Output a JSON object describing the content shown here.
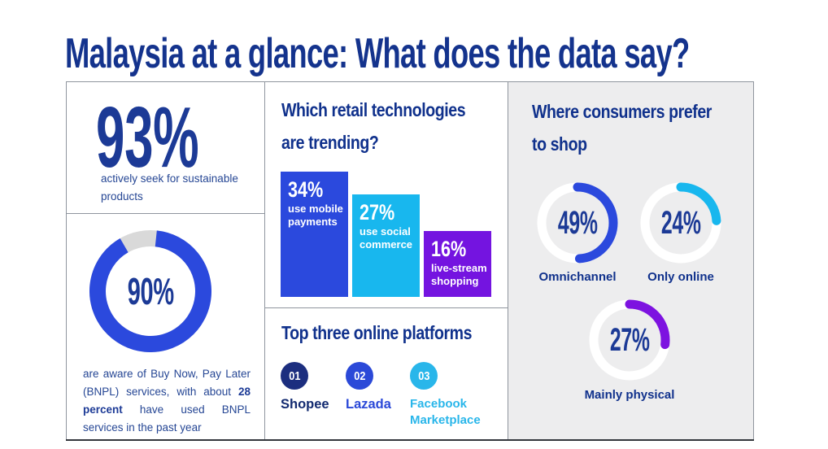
{
  "title": "Malaysia at a glance: What does the data say?",
  "accent_colors": {
    "navy": "#16348f",
    "royal_blue": "#2b49dd",
    "cyan": "#18b7ee",
    "purple": "#7414e0",
    "track_gray": "#d9d9d9",
    "panel_gray": "#ededee"
  },
  "sustainable_panel": {
    "value_label": "93%",
    "caption": "actively seek for sustainable products"
  },
  "bnpl_panel": {
    "value_label": "90%",
    "caption_pre": "are aware of Buy Now, Pay Later (BNPL) services, with about ",
    "caption_bold": "28 percent",
    "caption_post": " have used BNPL services in the past year"
  },
  "retail_panel": {
    "heading_line1": "Which retail technologies",
    "heading_line2": "are trending?",
    "bars": [
      {
        "value_label": "34%",
        "caption": "use mobile payments"
      },
      {
        "value_label": "27%",
        "caption": "use social commerce"
      },
      {
        "value_label": "16%",
        "caption": "live-stream shopping"
      }
    ]
  },
  "platforms_panel": {
    "heading": "Top three online platforms",
    "items": [
      {
        "rank": "01",
        "name": "Shopee"
      },
      {
        "rank": "02",
        "name": "Lazada"
      },
      {
        "rank": "03",
        "name": "Facebook Marketplace"
      }
    ]
  },
  "shop_panel": {
    "heading_line1": "Where consumers prefer",
    "heading_line2": "to shop",
    "rings": [
      {
        "value_label": "49%",
        "label": "Omnichannel"
      },
      {
        "value_label": "24%",
        "label": "Only online"
      },
      {
        "value_label": "27%",
        "label": "Mainly physical"
      }
    ]
  },
  "chart_data": [
    {
      "type": "bar",
      "title": "Which retail technologies are trending?",
      "categories": [
        "use mobile payments",
        "use social commerce",
        "live-stream shopping"
      ],
      "values": [
        34,
        27,
        16
      ],
      "unit": "%",
      "colors": [
        "#2b49dd",
        "#18b7ee",
        "#7414e0"
      ],
      "ylim": [
        0,
        40
      ],
      "grid": false,
      "value_labels_inside_bars": true
    },
    {
      "type": "pie",
      "subtype": "donut",
      "title": "BNPL awareness",
      "labels": [
        "are aware of BNPL services",
        "remainder"
      ],
      "values": [
        90,
        10
      ],
      "value": 90,
      "colors": [
        "#2b49dd",
        "#d9d9d9"
      ],
      "center_label": "90%"
    },
    {
      "type": "pie",
      "subtype": "donut-rings",
      "title": "Where consumers prefer to shop",
      "labels": [
        "Omnichannel",
        "Only online",
        "Mainly physical"
      ],
      "values": [
        49,
        24,
        27
      ],
      "colors": [
        "#2b49dd",
        "#18b7ee",
        "#7d12e0"
      ],
      "track_color": "#ffffff"
    },
    {
      "type": "table",
      "title": "Top three online platforms",
      "rows": [
        [
          "01",
          "Shopee"
        ],
        [
          "02",
          "Lazada"
        ],
        [
          "03",
          "Facebook Marketplace"
        ]
      ]
    }
  ]
}
